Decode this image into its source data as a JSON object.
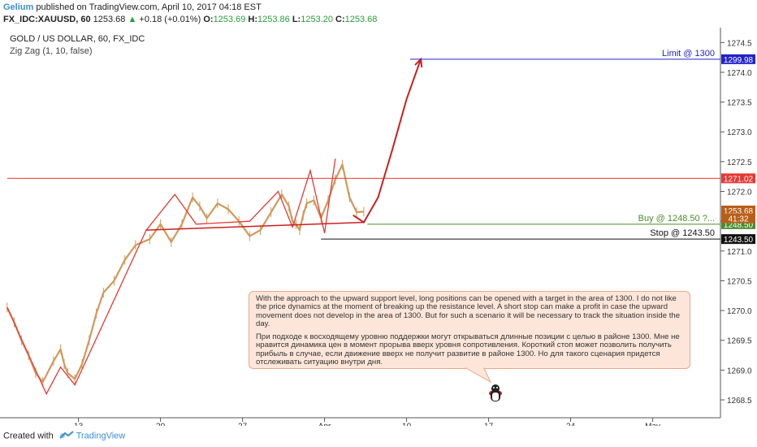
{
  "header": {
    "author": "Gelium",
    "published": "published on TradingView.com, April 10, 2017 04:18 EST",
    "symbol": "FX_IDC:XAUUSD, 60",
    "last": "1253.68",
    "change": "+0.18 (+0.01%)",
    "o_label": "O:",
    "o_value": "1253.69",
    "h_label": "H:",
    "h_value": "1253.86",
    "l_label": "L:",
    "l_value": "1253.20",
    "c_label": "C:",
    "c_value": "1253.68"
  },
  "chart_data": {
    "type": "line",
    "title": "GOLD / US DOLLAR, 60, FX_IDC",
    "subtitle": "Zig Zag (1, 10, false)",
    "xlabel": "",
    "ylabel": "",
    "x_ticks": [
      "13",
      "20",
      "27",
      "Apr",
      "10",
      "17",
      "24",
      "May"
    ],
    "y_ticks": [
      1268.5,
      1269.0,
      1269.5,
      1270.0,
      1270.5,
      1271.0,
      1271.5,
      1272.0,
      1272.5,
      1273.0,
      1273.5,
      1274.0,
      1274.5
    ],
    "ylim": [
      1268.2,
      1274.75
    ],
    "grid": false,
    "series": [
      {
        "kind": "price",
        "color": "#d2995b",
        "x": [
          0,
          2,
          4,
          6,
          8,
          10,
          13,
          15,
          16,
          17,
          19,
          21,
          23,
          25,
          27,
          30,
          33,
          36,
          40,
          43,
          46,
          49,
          52,
          54,
          56,
          59,
          62,
          65,
          68,
          71,
          74,
          77,
          79,
          80,
          81,
          82,
          83,
          84,
          86,
          88,
          90,
          92,
          94,
          96,
          98,
          100
        ],
        "y": [
          1270.05,
          1269.8,
          1269.5,
          1269.25,
          1268.95,
          1268.8,
          1269.15,
          1269.35,
          1269.1,
          1268.95,
          1268.85,
          1269.1,
          1269.5,
          1269.95,
          1270.3,
          1270.5,
          1270.85,
          1271.1,
          1271.2,
          1271.45,
          1271.15,
          1271.45,
          1271.9,
          1271.75,
          1271.55,
          1271.8,
          1271.7,
          1271.5,
          1271.25,
          1271.35,
          1271.65,
          1271.95,
          1271.75,
          1271.5,
          1271.45,
          1271.35,
          1271.6,
          1271.8,
          1271.85,
          1271.55,
          1271.85,
          1272.2,
          1272.45,
          1271.9,
          1271.65,
          1271.66
        ]
      },
      {
        "kind": "zigzag",
        "color": "#e53935",
        "x": [
          0,
          11,
          15,
          19,
          39,
          47,
          53,
          68,
          76,
          80,
          85,
          89,
          92
        ],
        "y": [
          1270.05,
          1268.6,
          1269.05,
          1268.75,
          1271.35,
          1271.95,
          1271.45,
          1271.5,
          1272.0,
          1271.4,
          1272.35,
          1271.3,
          1272.55
        ]
      },
      {
        "kind": "projection",
        "color": "#cc1f1f",
        "x": [
          97,
          100,
          104,
          108,
          112,
          116
        ],
        "y": [
          1271.6,
          1271.48,
          1271.9,
          1272.7,
          1273.55,
          1274.22
        ]
      }
    ],
    "x_positions": {
      "13": 20,
      "20": 43,
      "27": 66,
      "Apr": 89,
      "10": 112,
      "17": 135,
      "24": 158,
      "May": 181
    },
    "x_range": [
      -2,
      200
    ],
    "levels": [
      {
        "name": "Limit @ 1300",
        "value": 1274.22,
        "tag": "1299.98",
        "color": "#2222cc"
      },
      {
        "name": "",
        "value": 1272.22,
        "tag": "1271.02",
        "color": "#e53935"
      },
      {
        "name": "Buy @ 1248.50 ?...",
        "value": 1271.45,
        "tag": "1248.50",
        "color": "#4a8c2a"
      },
      {
        "name": "Stop @ 1243.50",
        "value": 1271.2,
        "tag": "1243.50",
        "color": "#111111"
      }
    ],
    "price_tags": [
      {
        "label": "1253.68",
        "value": 1271.68,
        "color": "#b85e19"
      },
      {
        "label": "41:32",
        "value": 1271.55,
        "color": "#b85e19"
      }
    ]
  },
  "note": {
    "en": "With the approach to the upward support level, long positions can be opened with a target in the area of 1300. I do not like the price dynamics at the moment of breaking up the resistance level. A short stop can make a profit in case the upward movement does not develop in the area of 1300. But for such a scenario it will be necessary to track the situation inside the day.",
    "ru": "При подходе к восходящему уровню поддержки могут открываться длинные позиции с целью в районе 1300. Мне не нравится динамика цен в момент прорыва вверх уровня сопротивления. Короткий стоп может позволить получить прибыль в случае, если движение вверх не получит развитие в районе 1300. Но для такого сценария придется отслеживать ситуацию внутри дня."
  },
  "footer": {
    "created_with": "Created with",
    "brand": "TradingView"
  }
}
